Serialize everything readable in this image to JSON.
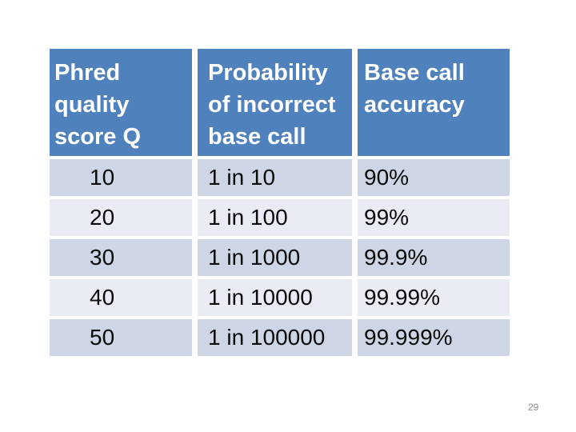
{
  "slide": {
    "page_number": "29",
    "background_color": "#ffffff"
  },
  "table": {
    "header": {
      "col0": "Phred quality score Q",
      "col1": "Probability of incorrect base call",
      "col2": "Base call accuracy"
    },
    "rows": [
      [
        "10",
        "1 in 10",
        "90%"
      ],
      [
        "20",
        "1 in 100",
        "99%"
      ],
      [
        "30",
        "1 in 1000",
        "99.9%"
      ],
      [
        "40",
        "1 in 10000",
        "99.99%"
      ],
      [
        "50",
        "1 in 100000",
        "99.999%"
      ]
    ],
    "colors": {
      "header_bg": "#4f81bd",
      "header_text": "#ffffff",
      "band_dark": "#ced5e4",
      "band_light": "#e9ecf4",
      "body_text": "#0a0a0a",
      "page_number_text": "#8c8c8c"
    }
  }
}
